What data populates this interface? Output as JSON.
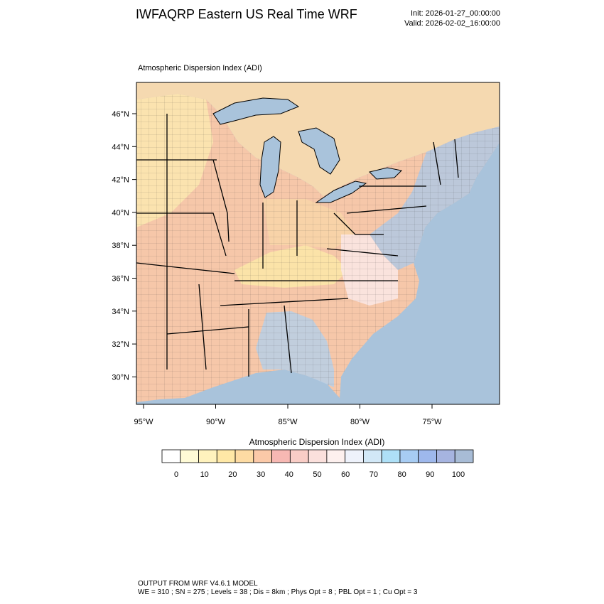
{
  "header": {
    "title": "IWFAQRP Eastern US Real Time WRF",
    "init": "Init: 2026-01-27_00:00:00",
    "valid": "Valid: 2026-02-02_16:00:00"
  },
  "map": {
    "subtitle": "Atmospheric Dispersion Index   (ADI)",
    "lat_labels": [
      "46°N",
      "44°N",
      "42°N",
      "40°N",
      "38°N",
      "36°N",
      "34°N",
      "32°N",
      "30°N"
    ],
    "lon_labels": [
      "95°W",
      "90°W",
      "85°W",
      "80°W",
      "75°W"
    ],
    "ocean_color": "#a9c3db",
    "canada_color": "#f5d9b0",
    "lake_color": "#a9c3db"
  },
  "colorbar": {
    "title": "Atmospheric Dispersion Index  (ADI)",
    "labels": [
      "0",
      "10",
      "20",
      "30",
      "40",
      "50",
      "60",
      "70",
      "80",
      "90",
      "100"
    ],
    "colors": [
      "#ffffff",
      "#fffbd6",
      "#fff2bd",
      "#ffe8a6",
      "#fddba3",
      "#fbc9a8",
      "#f7b8b3",
      "#f9cdc6",
      "#fbe0dc",
      "#fdf0ee",
      "#eef2fb",
      "#d2e8f7",
      "#aee0f7",
      "#a7ccf3",
      "#9eb8ec",
      "#a6b4e0",
      "#a8bcd6"
    ]
  },
  "footer": {
    "line1": "OUTPUT FROM WRF V4.6.1 MODEL",
    "line2": "WE = 310 ; SN = 275 ; Levels = 38 ; Dis = 8km ; Phys Opt = 8 ; PBL Opt = 1 ; Cu Opt = 3"
  }
}
